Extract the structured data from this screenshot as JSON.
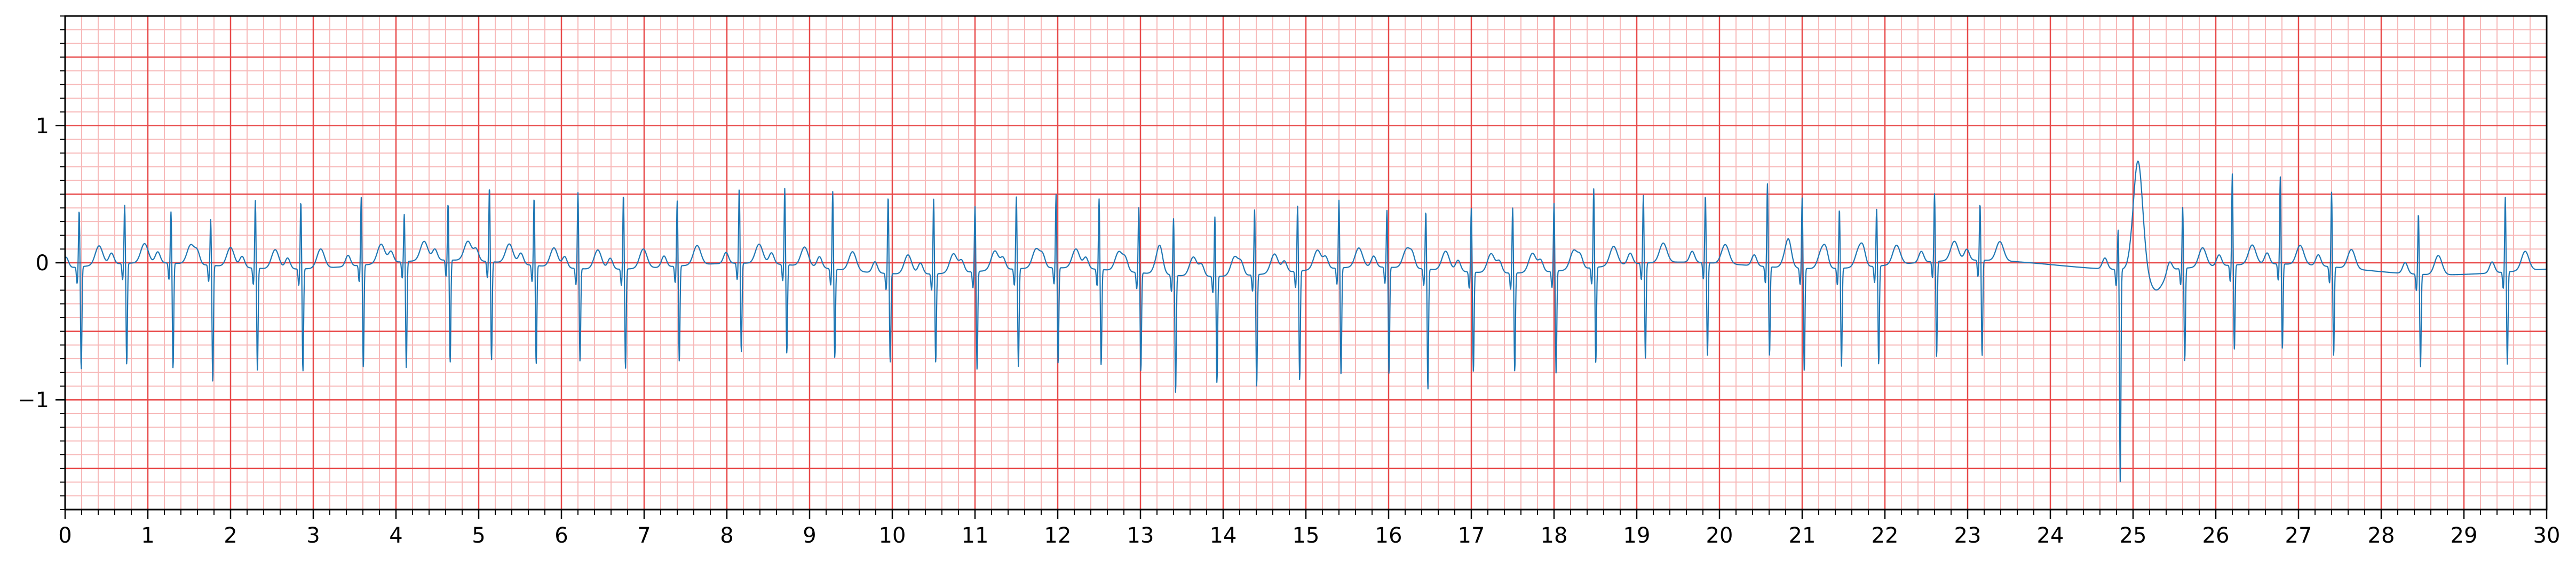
{
  "chart_data": {
    "type": "line",
    "title": "",
    "xlabel": "",
    "ylabel": "",
    "xlim": [
      0,
      30
    ],
    "ylim": [
      -1.8,
      1.8
    ],
    "x_ticks": [
      "0",
      "1",
      "2",
      "3",
      "4",
      "5",
      "6",
      "7",
      "8",
      "9",
      "10",
      "11",
      "12",
      "13",
      "14",
      "15",
      "16",
      "17",
      "18",
      "19",
      "20",
      "21",
      "22",
      "23",
      "24",
      "25",
      "26",
      "27",
      "28",
      "29",
      "30"
    ],
    "y_ticks": [
      {
        "value": 1,
        "label": "1"
      },
      {
        "value": 0,
        "label": "0"
      },
      {
        "value": -1,
        "label": "−1"
      }
    ],
    "grid": {
      "major_x": 1,
      "major_y": 0.5,
      "minor_x": 0.2,
      "minor_y": 0.1,
      "major_color": "#e84a4a",
      "minor_color": "#f7b9b9"
    },
    "line_color": "#1f77b4",
    "series": [
      {
        "beats": [
          {
            "t": 0.17,
            "r": 0.42,
            "s": -0.75
          },
          {
            "t": 0.72,
            "r": 0.43,
            "s": -0.74
          },
          {
            "t": 1.28,
            "r": 0.38,
            "s": -0.77
          },
          {
            "t": 1.76,
            "r": 0.34,
            "s": -0.85
          },
          {
            "t": 2.3,
            "r": 0.5,
            "s": -0.75
          },
          {
            "t": 2.85,
            "r": 0.5,
            "s": -0.75
          },
          {
            "t": 3.58,
            "r": 0.5,
            "s": -0.75
          },
          {
            "t": 4.1,
            "r": 0.35,
            "s": -0.78
          },
          {
            "t": 4.63,
            "r": 0.42,
            "s": -0.75
          },
          {
            "t": 5.13,
            "r": 0.55,
            "s": -0.72
          },
          {
            "t": 5.67,
            "r": 0.5,
            "s": -0.72
          },
          {
            "t": 6.2,
            "r": 0.56,
            "s": -0.68
          },
          {
            "t": 6.75,
            "r": 0.55,
            "s": -0.73
          },
          {
            "t": 7.4,
            "r": 0.48,
            "s": -0.7
          },
          {
            "t": 8.15,
            "r": 0.56,
            "s": -0.65
          },
          {
            "t": 8.7,
            "r": 0.56,
            "s": -0.65
          },
          {
            "t": 9.28,
            "r": 0.57,
            "s": -0.65
          },
          {
            "t": 9.95,
            "r": 0.57,
            "s": -0.65
          },
          {
            "t": 10.5,
            "r": 0.55,
            "s": -0.65
          },
          {
            "t": 11.0,
            "r": 0.48,
            "s": -0.72
          },
          {
            "t": 11.5,
            "r": 0.53,
            "s": -0.72
          },
          {
            "t": 11.98,
            "r": 0.54,
            "s": -0.7
          },
          {
            "t": 12.5,
            "r": 0.52,
            "s": -0.7
          },
          {
            "t": 12.98,
            "r": 0.48,
            "s": -0.72
          },
          {
            "t": 13.4,
            "r": 0.42,
            "s": -0.86
          },
          {
            "t": 13.9,
            "r": 0.44,
            "s": -0.78
          },
          {
            "t": 14.38,
            "r": 0.48,
            "s": -0.82
          },
          {
            "t": 14.9,
            "r": 0.48,
            "s": -0.8
          },
          {
            "t": 15.4,
            "r": 0.5,
            "s": -0.78
          },
          {
            "t": 15.98,
            "r": 0.42,
            "s": -0.78
          },
          {
            "t": 16.45,
            "r": 0.43,
            "s": -0.88
          },
          {
            "t": 17.0,
            "r": 0.47,
            "s": -0.73
          },
          {
            "t": 17.5,
            "r": 0.48,
            "s": -0.72
          },
          {
            "t": 18.0,
            "r": 0.5,
            "s": -0.75
          },
          {
            "t": 18.48,
            "r": 0.58,
            "s": -0.7
          },
          {
            "t": 19.08,
            "r": 0.5,
            "s": -0.7
          },
          {
            "t": 19.83,
            "r": 0.5,
            "s": -0.68
          },
          {
            "t": 20.58,
            "r": 0.61,
            "s": -0.65
          },
          {
            "t": 21.0,
            "r": 0.52,
            "s": -0.75
          },
          {
            "t": 21.45,
            "r": 0.44,
            "s": -0.72
          },
          {
            "t": 21.9,
            "r": 0.42,
            "s": -0.72
          },
          {
            "t": 22.6,
            "r": 0.5,
            "s": -0.7
          },
          {
            "t": 23.15,
            "r": 0.42,
            "s": -0.7
          },
          {
            "t": 24.82,
            "r": 0.3,
            "s": -1.56
          },
          {
            "t": 25.6,
            "r": 0.45,
            "s": -0.68
          },
          {
            "t": 26.2,
            "r": 0.67,
            "s": -0.62
          },
          {
            "t": 26.78,
            "r": 0.64,
            "s": -0.62
          },
          {
            "t": 27.4,
            "r": 0.55,
            "s": -0.65
          },
          {
            "t": 28.45,
            "r": 0.45,
            "s": -0.68
          },
          {
            "t": 29.5,
            "r": 0.55,
            "s": -0.68
          }
        ],
        "wide_complexes": [
          {
            "t": 25.06,
            "peak": 0.66
          }
        ]
      }
    ]
  }
}
